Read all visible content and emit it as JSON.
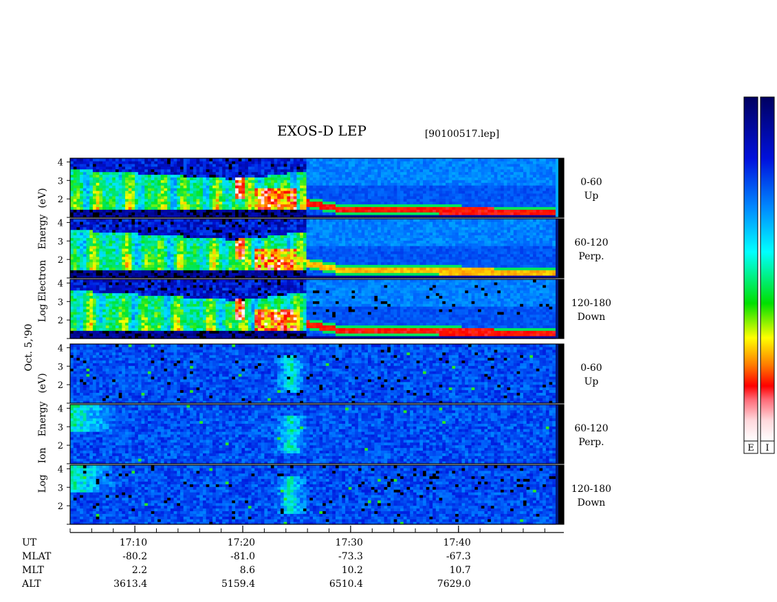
{
  "chart_data": {
    "type": "heatmap",
    "title": "EXOS-D LEP",
    "file_label": "[90100517.lep]",
    "date_label": "Oct. 5,'90",
    "x_axis": {
      "quantity": "UT",
      "range": [
        "17:04",
        "17:49"
      ],
      "major_ticks": [
        "17:10",
        "17:20",
        "17:30",
        "17:40"
      ],
      "minor_tick_interval_min": 2
    },
    "ephemeris": [
      {
        "label": "UT",
        "values": [
          "17:10",
          "17:20",
          "17:30",
          "17:40"
        ]
      },
      {
        "label": "MLAT",
        "values": [
          "-80.2",
          "-81.0",
          "-73.3",
          "-67.3"
        ]
      },
      {
        "label": "MLT",
        "values": [
          "2.2",
          "8.6",
          "10.2",
          "10.7"
        ]
      },
      {
        "label": "ALT",
        "values": [
          "3613.4",
          "5159.4",
          "6510.4",
          "7629.0"
        ]
      }
    ],
    "groups": [
      {
        "species": "Electron",
        "ylabel_lines": [
          "Log",
          "Electron",
          "Energy",
          "(eV)"
        ],
        "panels": [
          {
            "pitch_angle": "0-60",
            "direction": "Up",
            "yticks": [
              "2",
              "3",
              "4"
            ]
          },
          {
            "pitch_angle": "60-120",
            "direction": "Perp.",
            "yticks": [
              "2",
              "3",
              "4"
            ]
          },
          {
            "pitch_angle": "120-180",
            "direction": "Down",
            "yticks": [
              "2",
              "3",
              "4"
            ]
          }
        ]
      },
      {
        "species": "Ion",
        "ylabel_lines": [
          "Log",
          "Ion",
          "Energy",
          "(eV)"
        ],
        "panels": [
          {
            "pitch_angle": "0-60",
            "direction": "Up",
            "yticks": [
              "2",
              "3",
              "4"
            ]
          },
          {
            "pitch_angle": "60-120",
            "direction": "Perp.",
            "yticks": [
              "2",
              "3",
              "4"
            ]
          },
          {
            "pitch_angle": "120-180",
            "direction": "Down",
            "yticks": [
              "2",
              "3",
              "4"
            ]
          }
        ]
      }
    ],
    "ylim": [
      1,
      4.2
    ],
    "colorbars": [
      {
        "label": "E",
        "colors": [
          "#ffffff",
          "#ff9aa8",
          "#ff0000",
          "#ff7a00",
          "#ffff00",
          "#00ff00",
          "#00ffff",
          "#0077ff",
          "#0000cc",
          "#000060"
        ]
      },
      {
        "label": "I",
        "colors": [
          "#ffffff",
          "#ff9aa8",
          "#ff0000",
          "#ff7a00",
          "#ffff00",
          "#00ff00",
          "#00ffff",
          "#0077ff",
          "#0000cc",
          "#000060"
        ]
      }
    ]
  }
}
